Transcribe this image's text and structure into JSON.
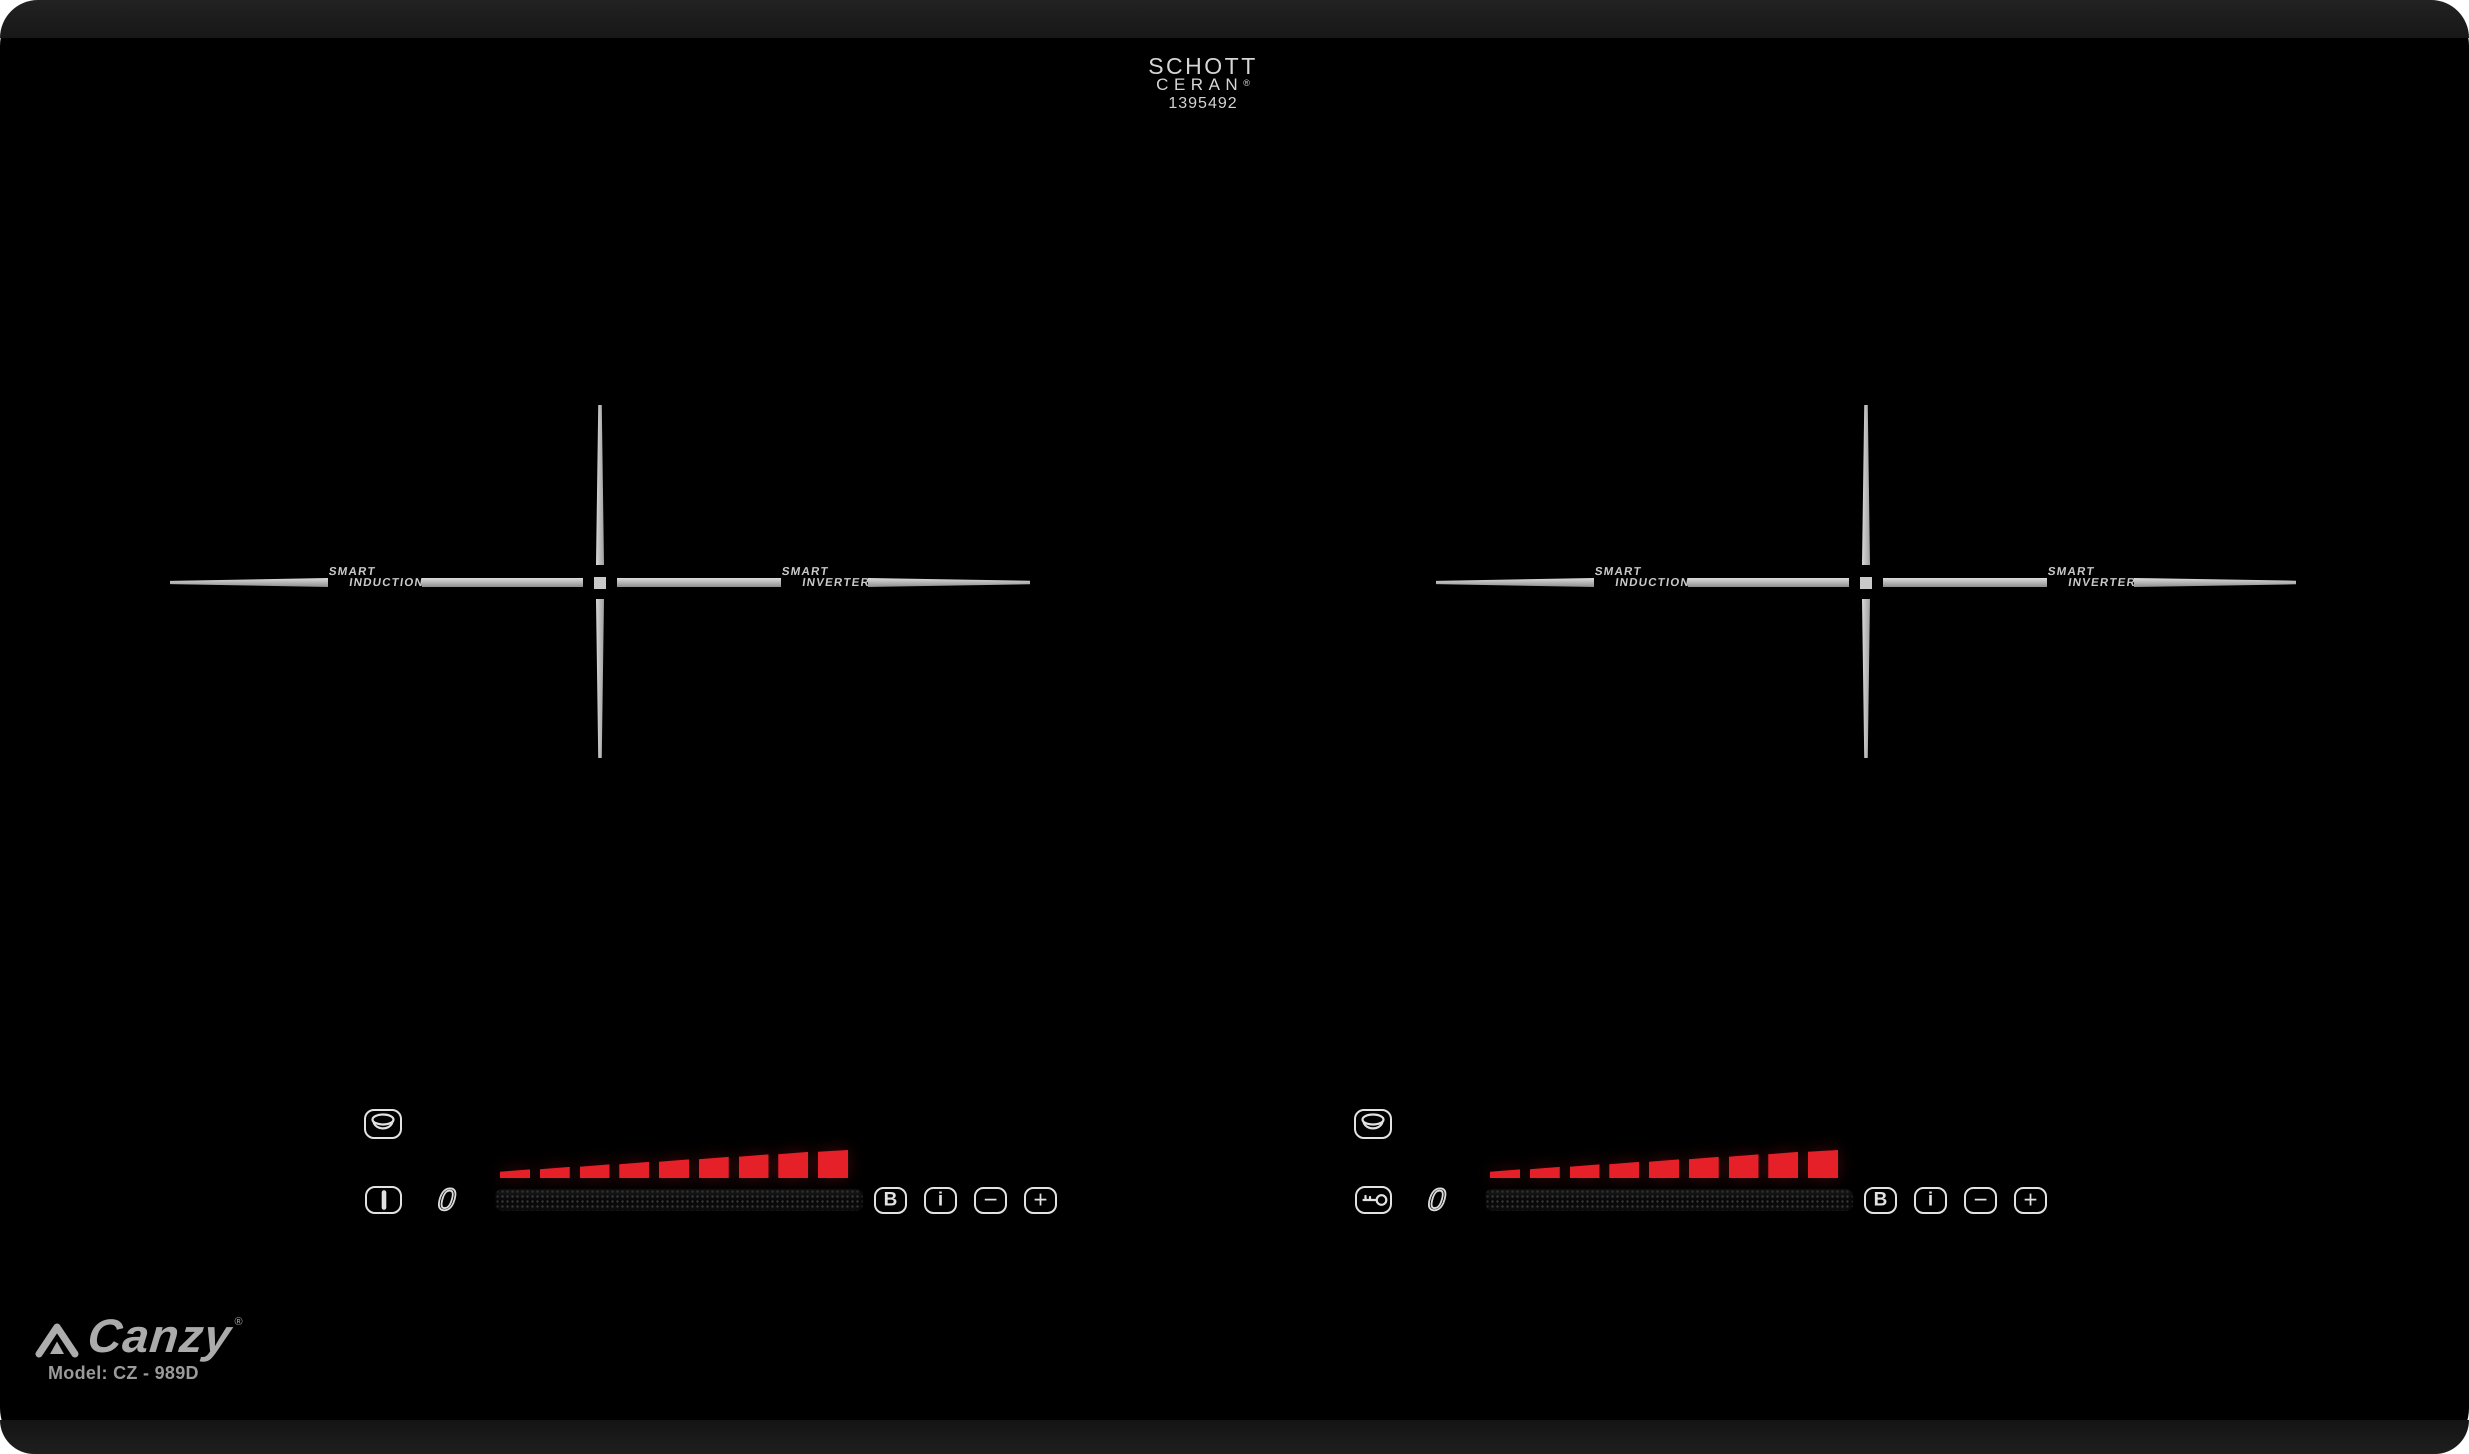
{
  "glass_brand": {
    "name_line": "SCHOTT",
    "product_line": "CERAN",
    "registered": "®",
    "serial": "1395492"
  },
  "zone_label": {
    "word1": "SMART",
    "left_word2": "INDUCTION",
    "right_word2": "INVERTER"
  },
  "controls": {
    "power_display": "0",
    "booster": "B",
    "info": "i",
    "minus": "−",
    "plus": "+",
    "ramp_segments": 9,
    "icons": {
      "left_primary": "power-I-icon",
      "right_primary": "key-lock-icon",
      "zone_select": "pot-icon"
    }
  },
  "brand": {
    "name": "Canzy",
    "registered": "®",
    "model": "Model: CZ - 989D"
  },
  "colors": {
    "glass": "#000000",
    "bezel": "#1b1b1b",
    "heat_red": "#e62028",
    "control_outline": "#e2e2e2",
    "brand_gray": "#ababab",
    "cross_line": "#c0c0c0"
  }
}
